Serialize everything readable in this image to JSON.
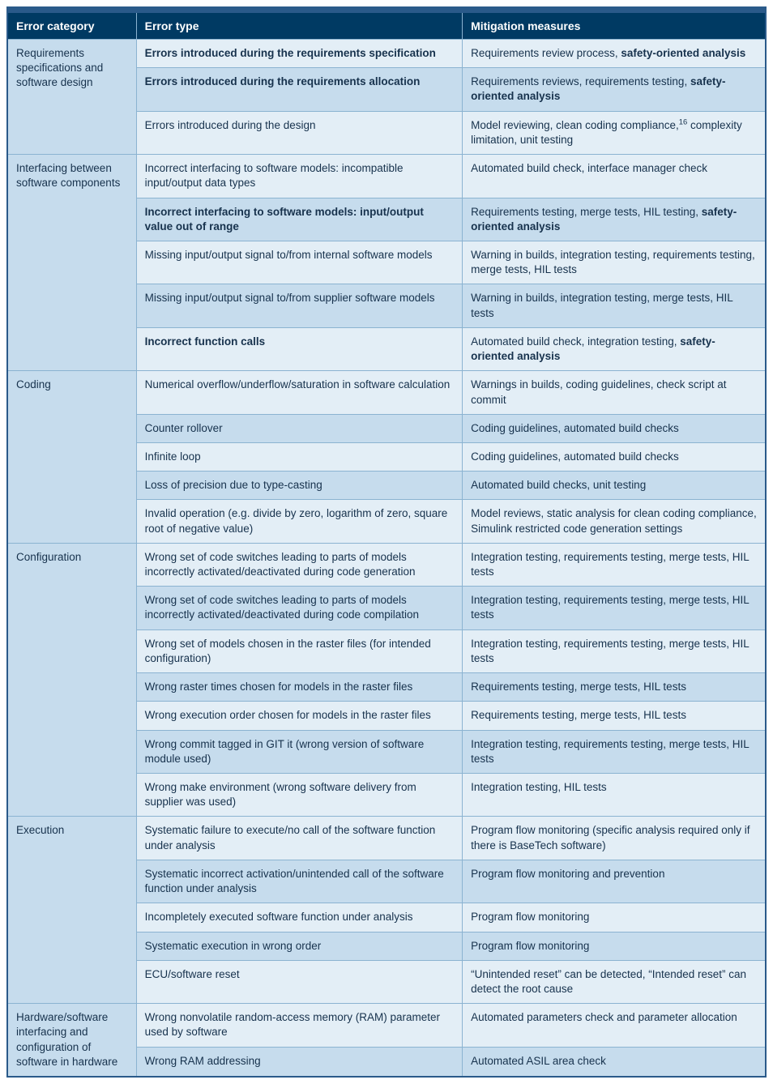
{
  "type": "table",
  "colors": {
    "header_bg": "#003a63",
    "header_fg": "#ffffff",
    "row_light": "#e3eef6",
    "row_dark": "#c6dced",
    "border": "#8bb3d1",
    "text": "#17324d",
    "outer": "#2a5a8a"
  },
  "typography": {
    "header_fontsize": 14,
    "body_fontsize": 13.5,
    "font_family": "Helvetica Neue, Helvetica, Arial, sans-serif"
  },
  "columns": [
    {
      "key": "category",
      "label": "Error category",
      "width_pct": 17
    },
    {
      "key": "type",
      "label": "Error type",
      "width_pct": 43
    },
    {
      "key": "mitigation",
      "label": "Mitigation measures",
      "width_pct": 40
    }
  ],
  "groups": [
    {
      "category": "Requirements specifications and software design",
      "rows": [
        {
          "shade": "light",
          "type": [
            {
              "t": "Errors introduced during the requirements specification",
              "bold": true
            }
          ],
          "mitigation": [
            {
              "t": "Requirements review process, "
            },
            {
              "t": "safety-oriented analysis",
              "bold": true
            }
          ]
        },
        {
          "shade": "dark",
          "type": [
            {
              "t": "Errors introduced during the requirements allocation",
              "bold": true
            }
          ],
          "mitigation": [
            {
              "t": "Requirements reviews, requirements testing, "
            },
            {
              "t": "safety-oriented analysis",
              "bold": true
            }
          ]
        },
        {
          "shade": "light",
          "type": [
            {
              "t": "Errors introduced during the design"
            }
          ],
          "mitigation": [
            {
              "t": "Model reviewing, clean coding compliance,"
            },
            {
              "t": "16",
              "sup": true
            },
            {
              "t": " complexity limitation, unit testing"
            }
          ]
        }
      ]
    },
    {
      "category": "Interfacing between software components",
      "rows": [
        {
          "shade": "light",
          "type": [
            {
              "t": "Incorrect interfacing to software models: incompatible input/output data types"
            }
          ],
          "mitigation": [
            {
              "t": "Automated build check, interface manager check"
            }
          ]
        },
        {
          "shade": "dark",
          "type": [
            {
              "t": "Incorrect interfacing to software models: input/output value out of range",
              "bold": true
            }
          ],
          "mitigation": [
            {
              "t": "Requirements testing, merge tests, HIL testing, "
            },
            {
              "t": "safety-oriented analysis",
              "bold": true
            }
          ]
        },
        {
          "shade": "light",
          "type": [
            {
              "t": "Missing input/output signal to/from internal software models"
            }
          ],
          "mitigation": [
            {
              "t": "Warning in builds, integration testing, requirements testing, merge tests, HIL tests"
            }
          ]
        },
        {
          "shade": "dark",
          "type": [
            {
              "t": "Missing input/output signal to/from supplier software models"
            }
          ],
          "mitigation": [
            {
              "t": "Warning in builds, integration testing, merge tests, HIL tests"
            }
          ]
        },
        {
          "shade": "light",
          "type": [
            {
              "t": "Incorrect function calls",
              "bold": true
            }
          ],
          "mitigation": [
            {
              "t": "Automated build check, integration testing, "
            },
            {
              "t": "safety-oriented analysis",
              "bold": true
            }
          ]
        }
      ]
    },
    {
      "category": "Coding",
      "rows": [
        {
          "shade": "light",
          "type": [
            {
              "t": "Numerical overflow/underflow/saturation in software calculation"
            }
          ],
          "mitigation": [
            {
              "t": "Warnings in builds, coding guidelines, check script at commit"
            }
          ]
        },
        {
          "shade": "dark",
          "type": [
            {
              "t": "Counter rollover"
            }
          ],
          "mitigation": [
            {
              "t": "Coding guidelines, automated build checks"
            }
          ]
        },
        {
          "shade": "light",
          "type": [
            {
              "t": "Infinite loop"
            }
          ],
          "mitigation": [
            {
              "t": "Coding guidelines, automated build checks"
            }
          ]
        },
        {
          "shade": "dark",
          "type": [
            {
              "t": "Loss of precision due to type-casting"
            }
          ],
          "mitigation": [
            {
              "t": "Automated build checks, unit testing"
            }
          ]
        },
        {
          "shade": "light",
          "type": [
            {
              "t": "Invalid operation (e.g. divide by zero, logarithm of zero, square root of negative value)"
            }
          ],
          "mitigation": [
            {
              "t": "Model reviews, static analysis for clean coding compliance, Simulink restricted code generation settings"
            }
          ]
        }
      ]
    },
    {
      "category": "Configuration",
      "rows": [
        {
          "shade": "light",
          "type": [
            {
              "t": "Wrong set of code switches leading to parts of models incorrectly activated/deactivated during code generation"
            }
          ],
          "mitigation": [
            {
              "t": "Integration testing, requirements testing, merge tests, HIL tests"
            }
          ]
        },
        {
          "shade": "dark",
          "type": [
            {
              "t": "Wrong set of code switches leading to parts of models incorrectly activated/deactivated during code compilation"
            }
          ],
          "mitigation": [
            {
              "t": "Integration testing, requirements testing, merge tests, HIL tests"
            }
          ]
        },
        {
          "shade": "light",
          "type": [
            {
              "t": "Wrong set of models chosen in the raster files (for intended configuration)"
            }
          ],
          "mitigation": [
            {
              "t": "Integration testing, requirements testing, merge tests, HIL tests"
            }
          ]
        },
        {
          "shade": "dark",
          "type": [
            {
              "t": "Wrong raster times chosen for models in the raster files"
            }
          ],
          "mitigation": [
            {
              "t": "Requirements testing, merge tests, HIL tests"
            }
          ]
        },
        {
          "shade": "light",
          "type": [
            {
              "t": "Wrong execution order chosen for models in the raster files"
            }
          ],
          "mitigation": [
            {
              "t": "Requirements testing, merge tests, HIL tests"
            }
          ]
        },
        {
          "shade": "dark",
          "type": [
            {
              "t": "Wrong commit tagged in GIT it (wrong version of software module used)"
            }
          ],
          "mitigation": [
            {
              "t": "Integration testing, requirements testing, merge tests, HIL tests"
            }
          ]
        },
        {
          "shade": "light",
          "type": [
            {
              "t": "Wrong make environment (wrong software delivery from supplier was used)"
            }
          ],
          "mitigation": [
            {
              "t": "Integration testing, HIL tests"
            }
          ]
        }
      ]
    },
    {
      "category": "Execution",
      "rows": [
        {
          "shade": "light",
          "type": [
            {
              "t": "Systematic failure to execute/no call of the software function under analysis"
            }
          ],
          "mitigation": [
            {
              "t": "Program flow monitoring (specific analysis required only if there is BaseTech software)"
            }
          ]
        },
        {
          "shade": "dark",
          "type": [
            {
              "t": "Systematic incorrect activation/unintended call of the software function under analysis"
            }
          ],
          "mitigation": [
            {
              "t": "Program flow monitoring and prevention"
            }
          ]
        },
        {
          "shade": "light",
          "type": [
            {
              "t": "Incompletely executed software function under analysis"
            }
          ],
          "mitigation": [
            {
              "t": "Program flow monitoring"
            }
          ]
        },
        {
          "shade": "dark",
          "type": [
            {
              "t": "Systematic execution in wrong order"
            }
          ],
          "mitigation": [
            {
              "t": "Program flow monitoring"
            }
          ]
        },
        {
          "shade": "light",
          "type": [
            {
              "t": "ECU/software reset"
            }
          ],
          "mitigation": [
            {
              "t": "“Unintended reset” can be detected, “Intended reset” can detect the root cause"
            }
          ]
        }
      ]
    },
    {
      "category": "Hardware/software interfacing and configuration of software in hardware",
      "rows": [
        {
          "shade": "light",
          "type": [
            {
              "t": "Wrong nonvolatile random-access memory (RAM) parameter used by software"
            }
          ],
          "mitigation": [
            {
              "t": "Automated parameters check and parameter allocation"
            }
          ]
        },
        {
          "shade": "dark",
          "type": [
            {
              "t": "Wrong RAM addressing"
            }
          ],
          "mitigation": [
            {
              "t": "Automated ASIL area check"
            }
          ]
        }
      ]
    }
  ]
}
